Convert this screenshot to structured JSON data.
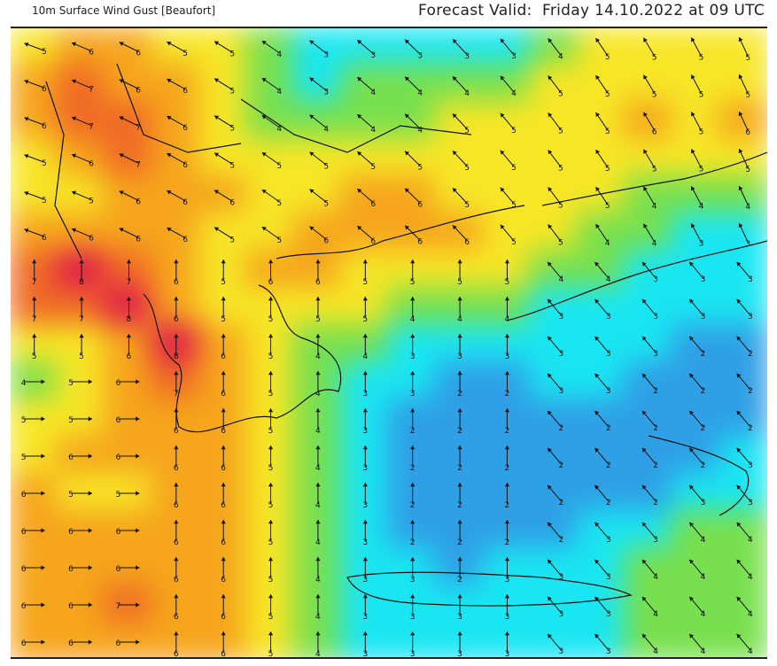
{
  "header": {
    "title": "10m Surface Wind Gust [Beaufort]",
    "forecast_label": "Forecast Valid:",
    "forecast_time": "Friday 14.10.2022 at 09 UTC"
  },
  "legend_colors": {
    "2": "#2f9fe6",
    "3": "#19e6f2",
    "4": "#78e04e",
    "5": "#f7e626",
    "6": "#f6a51c",
    "7": "#f06a26",
    "8": "#e01a4c"
  },
  "wind_gust_beaufort_grid": [
    [
      5,
      6,
      6,
      5,
      5,
      4,
      3,
      3,
      3,
      3,
      3,
      4,
      5,
      5,
      5,
      5
    ],
    [
      6,
      7,
      6,
      6,
      5,
      4,
      3,
      4,
      4,
      4,
      4,
      5,
      5,
      5,
      5,
      5
    ],
    [
      6,
      7,
      7,
      6,
      5,
      4,
      4,
      4,
      4,
      5,
      5,
      5,
      5,
      6,
      5,
      6
    ],
    [
      5,
      6,
      7,
      6,
      5,
      5,
      5,
      5,
      5,
      5,
      5,
      5,
      5,
      5,
      5,
      5
    ],
    [
      5,
      5,
      6,
      6,
      6,
      5,
      5,
      6,
      6,
      5,
      5,
      5,
      5,
      4,
      4,
      4
    ],
    [
      6,
      6,
      6,
      6,
      5,
      5,
      6,
      6,
      6,
      6,
      5,
      5,
      4,
      4,
      3,
      3
    ],
    [
      7,
      8,
      7,
      6,
      5,
      6,
      6,
      5,
      5,
      5,
      5,
      4,
      4,
      3,
      3,
      3
    ],
    [
      7,
      7,
      8,
      6,
      5,
      5,
      5,
      5,
      4,
      4,
      4,
      3,
      3,
      3,
      3,
      3
    ],
    [
      5,
      5,
      6,
      8,
      6,
      5,
      4,
      4,
      3,
      3,
      3,
      3,
      3,
      3,
      2,
      2
    ],
    [
      4,
      5,
      6,
      7,
      6,
      5,
      4,
      3,
      3,
      2,
      2,
      3,
      3,
      2,
      2,
      2
    ],
    [
      5,
      5,
      6,
      6,
      6,
      5,
      4,
      3,
      2,
      2,
      2,
      2,
      2,
      2,
      2,
      2
    ],
    [
      5,
      6,
      6,
      6,
      6,
      5,
      4,
      3,
      2,
      2,
      2,
      2,
      2,
      2,
      2,
      3
    ],
    [
      6,
      5,
      5,
      6,
      6,
      5,
      4,
      3,
      2,
      2,
      2,
      2,
      2,
      2,
      3,
      3
    ],
    [
      6,
      6,
      6,
      6,
      6,
      5,
      4,
      3,
      2,
      2,
      2,
      2,
      3,
      3,
      4,
      4
    ],
    [
      6,
      6,
      6,
      6,
      6,
      5,
      4,
      3,
      3,
      2,
      3,
      3,
      3,
      4,
      4,
      4
    ],
    [
      6,
      6,
      7,
      6,
      6,
      5,
      4,
      3,
      3,
      3,
      3,
      3,
      3,
      4,
      4,
      4
    ],
    [
      6,
      6,
      6,
      6,
      6,
      5,
      4,
      3,
      3,
      3,
      3,
      3,
      3,
      4,
      4,
      4
    ]
  ]
}
